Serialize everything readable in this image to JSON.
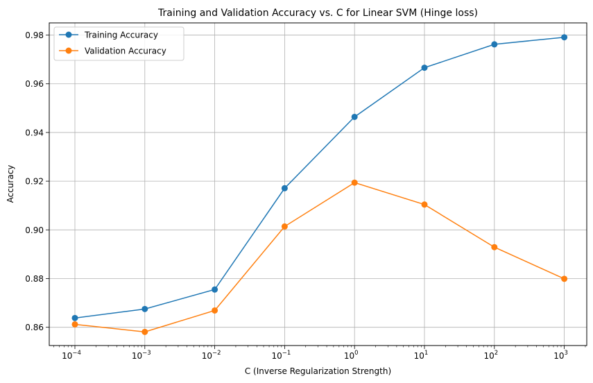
{
  "chart_data": {
    "type": "line",
    "title": "Training and Validation Accuracy vs. C for Linear SVM (Hinge loss)",
    "xlabel": "C (Inverse Regularization Strength)",
    "ylabel": "Accuracy",
    "xscale": "log",
    "x": [
      0.0001,
      0.001,
      0.01,
      0.1,
      1,
      10,
      100,
      1000
    ],
    "x_tick_labels": [
      {
        "base": "10",
        "exp": "−4"
      },
      {
        "base": "10",
        "exp": "−3"
      },
      {
        "base": "10",
        "exp": "−2"
      },
      {
        "base": "10",
        "exp": "−1"
      },
      {
        "base": "10",
        "exp": "0"
      },
      {
        "base": "10",
        "exp": "1"
      },
      {
        "base": "10",
        "exp": "2"
      },
      {
        "base": "10",
        "exp": "3"
      }
    ],
    "yticks": [
      "0.86",
      "0.88",
      "0.90",
      "0.92",
      "0.94",
      "0.96",
      "0.98"
    ],
    "ylim": [
      0.8525,
      0.985
    ],
    "grid": true,
    "legend_position": "top-left",
    "series": [
      {
        "name": "Training Accuracy",
        "color": "#1f77b4",
        "values": [
          0.8638,
          0.8675,
          0.8755,
          0.9171,
          0.9464,
          0.9666,
          0.9762,
          0.9791
        ]
      },
      {
        "name": "Validation Accuracy",
        "color": "#ff7f0e",
        "values": [
          0.8612,
          0.8581,
          0.8669,
          0.9014,
          0.9194,
          0.9104,
          0.8929,
          0.8799
        ]
      }
    ]
  }
}
